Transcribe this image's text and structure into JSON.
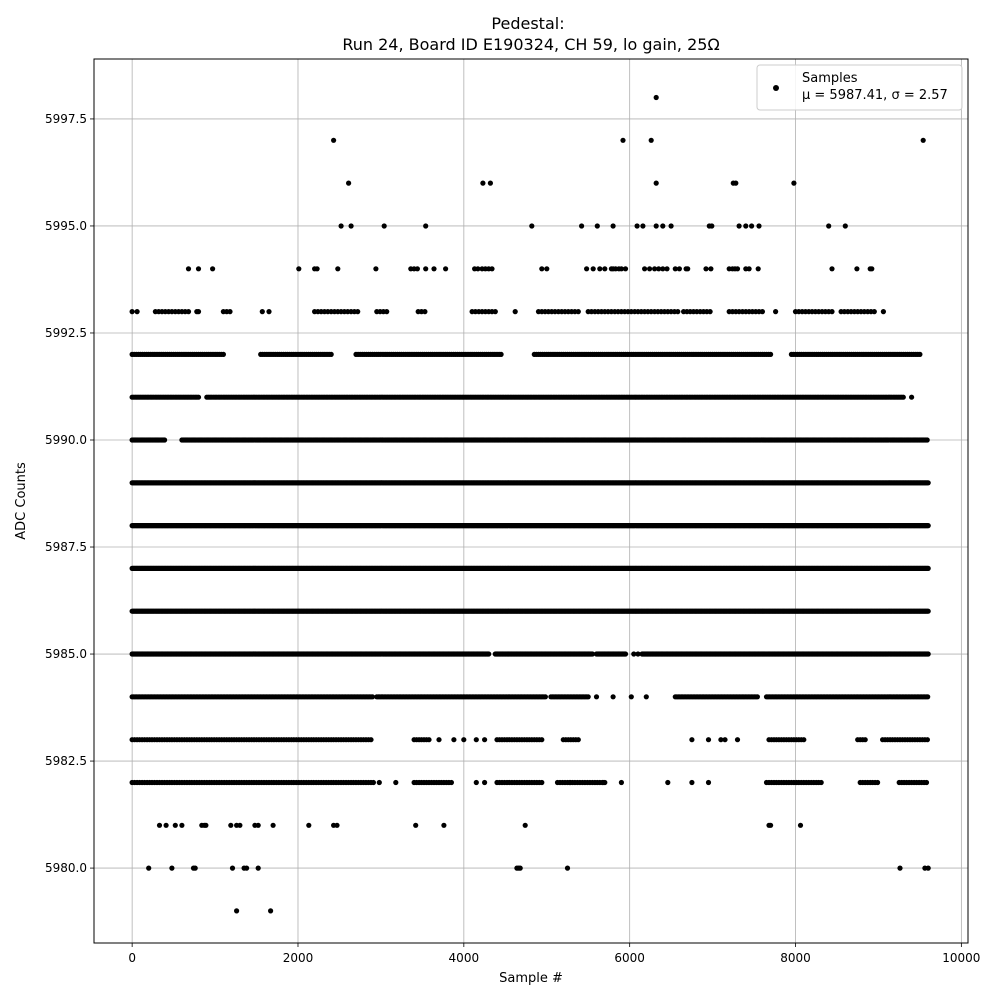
{
  "chart_data": {
    "type": "scatter",
    "title_line1": "Pedestal:",
    "title_line2": "Run 24, Board ID E190324, CH 59, lo gain, 25Ω",
    "xlabel": "Sample #",
    "ylabel": "ADC Counts",
    "xlim": [
      -460,
      10080
    ],
    "ylim": [
      5978.25,
      5998.9
    ],
    "xticks": [
      0,
      2000,
      4000,
      6000,
      8000,
      10000
    ],
    "xtick_labels": [
      "0",
      "2000",
      "4000",
      "6000",
      "8000",
      "10000"
    ],
    "yticks": [
      5980.0,
      5982.5,
      5985.0,
      5987.5,
      5990.0,
      5992.5,
      5995.0,
      5997.5
    ],
    "ytick_labels": [
      "5980.0",
      "5982.5",
      "5985.0",
      "5987.5",
      "5990.0",
      "5992.5",
      "5995.0",
      "5997.5"
    ],
    "grid": true,
    "legend_position": "top-right",
    "legend": {
      "name": "Samples",
      "stats": "μ = 5987.41, σ = 2.57"
    },
    "marker_color": "#000000",
    "n_samples": 9600,
    "series": [
      {
        "name": "Samples",
        "levels": [
          {
            "y": 5979,
            "x": [
              1260,
              1670
            ]
          },
          {
            "y": 5980,
            "x": [
              200,
              480,
              740,
              760,
              1210,
              1350,
              1380,
              1520,
              4640,
              4660,
              4680,
              5250,
              9260,
              9560,
              9600
            ]
          },
          {
            "y": 5981,
            "x": [
              330,
              410,
              520,
              600,
              840,
              870,
              890,
              1190,
              1260,
              1300,
              1480,
              1520,
              1700,
              2130,
              2430,
              2470,
              3420,
              3760,
              4740,
              7680,
              7700,
              8060
            ]
          },
          {
            "y": 5982,
            "ranges": [
              [
                0,
                2920
              ],
              [
                3400,
                3860
              ],
              [
                4400,
                4960
              ],
              [
                5130,
                5700
              ],
              [
                7650,
                8320
              ],
              [
                8780,
                9000
              ],
              [
                9250,
                9600
              ]
            ],
            "step": 30,
            "x": [
              2980,
              3180,
              4150,
              4250,
              5280,
              5680,
              5900,
              6460,
              6750,
              6950
            ]
          },
          {
            "y": 5983,
            "ranges": [
              [
                0,
                2900
              ],
              [
                3400,
                3600
              ],
              [
                4400,
                4960
              ],
              [
                5200,
                5400
              ],
              [
                7680,
                8100
              ],
              [
                8750,
                8850
              ],
              [
                9050,
                9600
              ]
            ],
            "step": 30,
            "x": [
              3700,
              3880,
              4000,
              4150,
              4250,
              6750,
              6950,
              7100,
              7150,
              7300
            ]
          },
          {
            "y": 5984,
            "ranges": [
              [
                0,
                2900
              ],
              [
                2950,
                5000
              ],
              [
                5050,
                5500
              ],
              [
                6550,
                7550
              ],
              [
                7650,
                9600
              ]
            ],
            "step": 18,
            "x": [
              5600,
              5800,
              6020,
              6200
            ]
          },
          {
            "y": 5985,
            "ranges": [
              [
                0,
                4300
              ],
              [
                4380,
                5550
              ],
              [
                5600,
                5950
              ],
              [
                6150,
                9600
              ]
            ],
            "step": 10,
            "x": [
              6050,
              6100
            ]
          },
          {
            "y": 5986,
            "ranges": [
              [
                0,
                9600
              ]
            ],
            "step": 10
          },
          {
            "y": 5987,
            "ranges": [
              [
                0,
                9600
              ]
            ],
            "step": 10
          },
          {
            "y": 5988,
            "ranges": [
              [
                0,
                9600
              ]
            ],
            "step": 10
          },
          {
            "y": 5989,
            "ranges": [
              [
                0,
                9600
              ]
            ],
            "step": 10
          },
          {
            "y": 5990,
            "ranges": [
              [
                0,
                400
              ],
              [
                600,
                9600
              ]
            ],
            "step": 14
          },
          {
            "y": 5991,
            "ranges": [
              [
                0,
                800
              ],
              [
                900,
                9300
              ]
            ],
            "step": 20,
            "x": [
              9400
            ]
          },
          {
            "y": 5992,
            "ranges": [
              [
                0,
                1100
              ],
              [
                1550,
                2400
              ],
              [
                2700,
                4450
              ],
              [
                4850,
                7700
              ],
              [
                7950,
                9500
              ]
            ],
            "step": 25
          },
          {
            "y": 5993,
            "ranges": [
              [
                280,
                700
              ],
              [
                1100,
                1200
              ],
              [
                2200,
                2750
              ],
              [
                2950,
                3100
              ],
              [
                3450,
                3550
              ],
              [
                4100,
                4400
              ],
              [
                4900,
                5400
              ],
              [
                5500,
                6600
              ],
              [
                6650,
                7000
              ],
              [
                7200,
                7600
              ],
              [
                8000,
                8450
              ],
              [
                8550,
                8950
              ]
            ],
            "step": 40,
            "x": [
              0,
              60,
              780,
              800,
              1570,
              1650,
              4620,
              7760,
              9060
            ]
          },
          {
            "y": 5994,
            "x": [
              680,
              800,
              970,
              2010,
              2200,
              2230,
              2480,
              2940,
              3360,
              3400,
              3440,
              3540,
              3640,
              3780,
              4130,
              4170,
              4220,
              4260,
              4300,
              4340,
              4940,
              5000,
              5480,
              5560,
              5640,
              5700,
              5780,
              5800,
              5830,
              5870,
              5900,
              5950,
              6180,
              6240,
              6300,
              6350,
              6400,
              6450,
              6550,
              6600,
              6680,
              6700,
              6920,
              6980,
              7200,
              7240,
              7270,
              7300,
              7400,
              7440,
              7550,
              8440,
              8740,
              8900,
              8920
            ]
          },
          {
            "y": 5995,
            "x": [
              2520,
              2640,
              3040,
              3540,
              4820,
              5420,
              5610,
              5800,
              6090,
              6160,
              6320,
              6400,
              6500,
              6960,
              6990,
              7320,
              7400,
              7470,
              7560,
              8400,
              8600
            ]
          },
          {
            "y": 5996,
            "x": [
              2610,
              4230,
              4320,
              6320,
              7250,
              7280,
              7980
            ]
          },
          {
            "y": 5997,
            "x": [
              2430,
              5920,
              6260,
              9540
            ]
          },
          {
            "y": 5998,
            "x": [
              6320
            ]
          }
        ]
      }
    ]
  }
}
